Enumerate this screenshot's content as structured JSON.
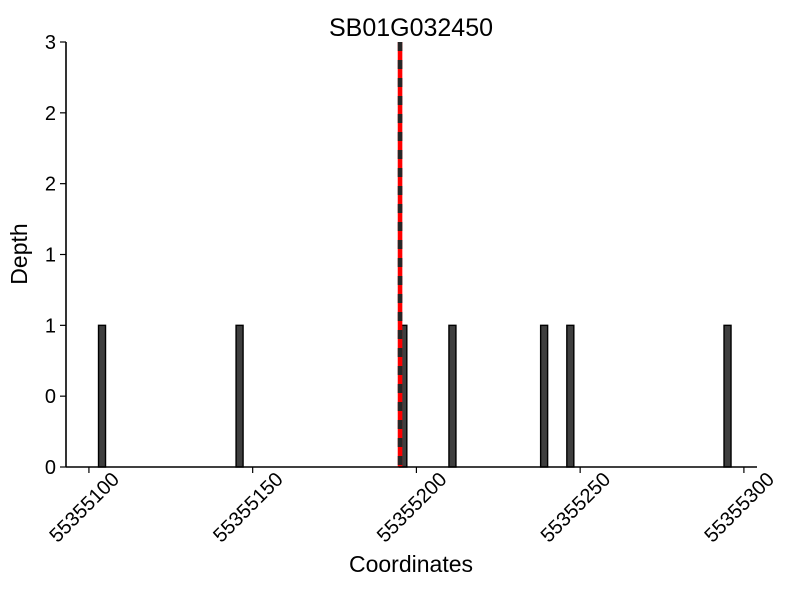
{
  "chart_data": {
    "type": "bar",
    "title": "SB01G032450",
    "xlabel": "Coordinates",
    "ylabel": "Depth",
    "xlim": [
      55355093,
      55355304
    ],
    "ylim": [
      0,
      3
    ],
    "grid": false,
    "legend": null,
    "x_ticks": {
      "values": [
        55355100,
        55355150,
        55355200,
        55355250,
        55355300
      ],
      "labels": [
        "55355100",
        "55355150",
        "55355200",
        "55355250",
        "55355300"
      ],
      "rotation_deg": 45
    },
    "y_ticks": {
      "values": [
        0,
        0.5,
        1,
        1.5,
        2,
        2.5,
        3
      ],
      "labels": [
        "0",
        "0",
        "1",
        "1",
        "2",
        "2",
        "3"
      ]
    },
    "bars": [
      {
        "x": 55355104,
        "depth": 1
      },
      {
        "x": 55355146,
        "depth": 1
      },
      {
        "x": 55355196,
        "depth": 1
      },
      {
        "x": 55355211,
        "depth": 1
      },
      {
        "x": 55355239,
        "depth": 1
      },
      {
        "x": 55355247,
        "depth": 1
      },
      {
        "x": 55355295,
        "depth": 1
      }
    ],
    "marker_line": {
      "x": 55355195,
      "from_depth": 0,
      "to_depth": 3,
      "style": "dashed",
      "color": "#ff0000",
      "dash_color": "#262626"
    },
    "colors": {
      "bar_fill": "#3f3f3f",
      "bar_edge": "#000000",
      "axis": "#000000",
      "text": "#000000",
      "background": "#ffffff"
    }
  }
}
